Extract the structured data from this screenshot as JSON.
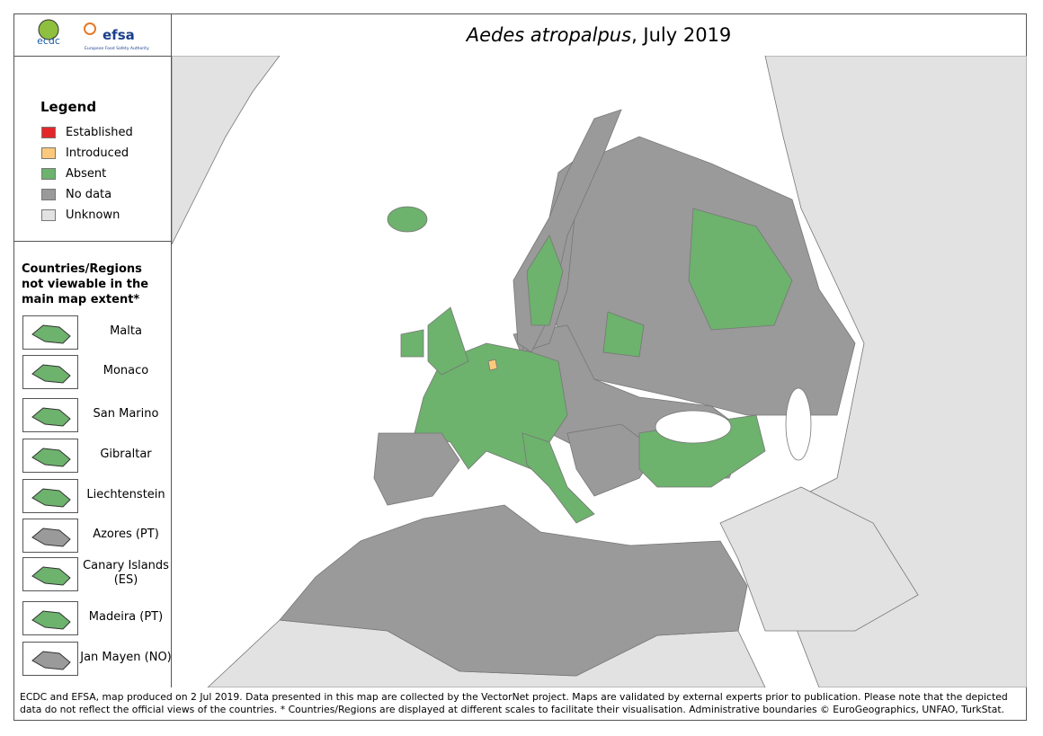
{
  "header": {
    "logo_ecdc": "ecdc",
    "logo_efsa": "efsa",
    "logo_efsa_sub": "European Food Safety Authority",
    "title_species": "Aedes atropalpus",
    "title_date": ", July 2019"
  },
  "legend": {
    "title": "Legend",
    "items": [
      {
        "label": "Established",
        "color": "#e3262a"
      },
      {
        "label": "Introduced",
        "color": "#fcc97c"
      },
      {
        "label": "Absent",
        "color": "#6db26d"
      },
      {
        "label": "No data",
        "color": "#9a9a9a"
      },
      {
        "label": "Unknown",
        "color": "#e2e2e2"
      }
    ]
  },
  "insets": {
    "title": "Countries/Regions not viewable in the main map extent*",
    "items": [
      {
        "label": "Malta",
        "color": "#6db26d"
      },
      {
        "label": "Monaco",
        "color": "#6db26d"
      },
      {
        "label": "San Marino",
        "color": "#6db26d"
      },
      {
        "label": "Gibraltar",
        "color": "#6db26d"
      },
      {
        "label": "Liechtenstein",
        "color": "#6db26d"
      },
      {
        "label": "Azores (PT)",
        "color": "#9a9a9a"
      },
      {
        "label": "Canary Islands (ES)",
        "color": "#6db26d"
      },
      {
        "label": "Madeira (PT)",
        "color": "#6db26d"
      },
      {
        "label": "Jan Mayen (NO)",
        "color": "#9a9a9a"
      }
    ]
  },
  "footer": "ECDC and EFSA, map produced on 2 Jul 2019. Data presented in this map are collected by the VectorNet project. Maps are validated by external experts prior to publication. Please note that the depicted data do not reflect the official views of the countries. * Countries/Regions are displayed at different scales to facilitate their visualisation. Administrative boundaries © EuroGeographics, UNFAO, TurkStat."
}
